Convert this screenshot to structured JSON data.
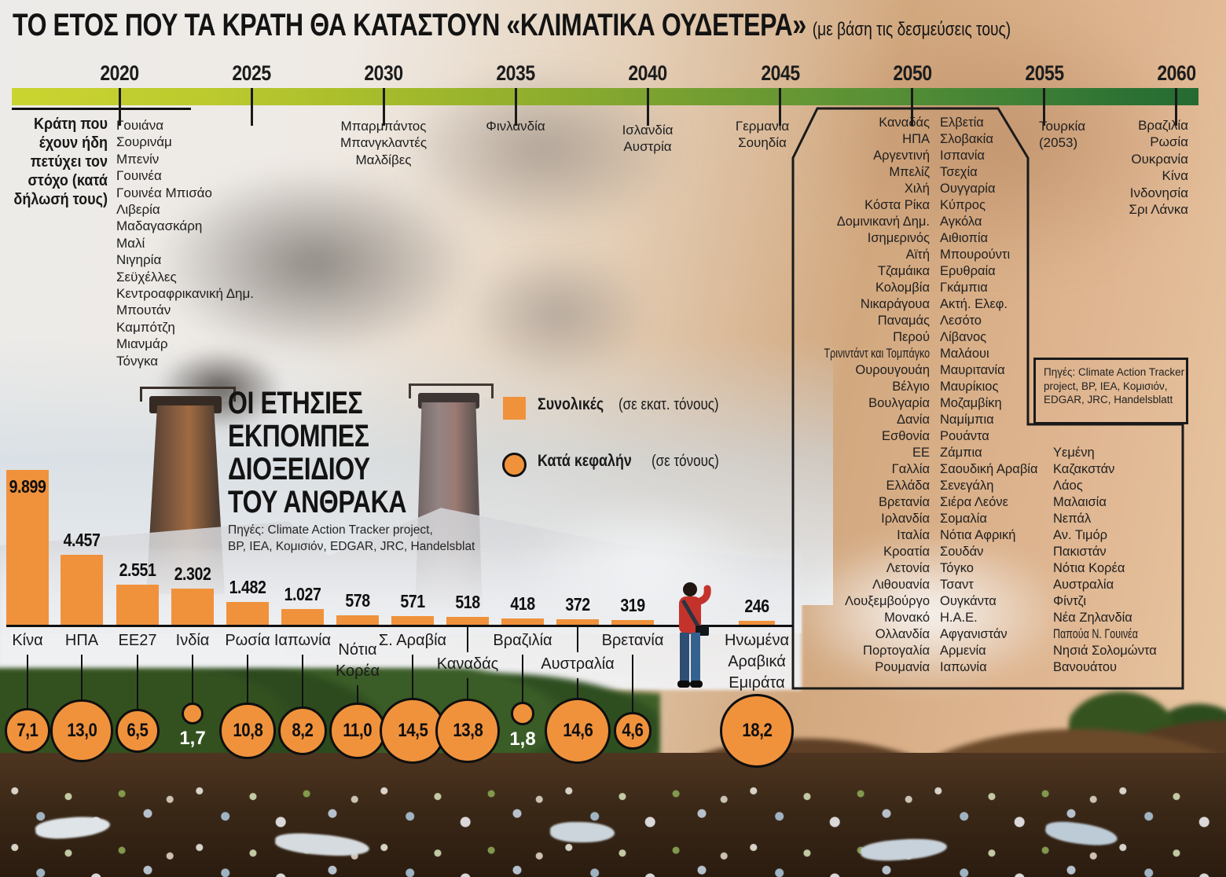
{
  "title": {
    "main": "ΤΟ ΕΤΟΣ ΠΟΥ ΤΑ ΚΡΑΤΗ ΘΑ ΚΑΤΑΣΤΟΥΝ «ΚΛΙΜΑΤΙΚΑ ΟΥΔΕΤΕΡΑ»",
    "note": "(με βάση τις δεσμεύσεις τους)"
  },
  "achieved_note_lines": [
    "Κράτη που",
    "έχουν ήδη",
    "πετύχει τον",
    "στόχο (κατά",
    "δήλωσή τους)"
  ],
  "sources_box_lines": [
    "Πηγές: Climate Action Tracker",
    "project, BP, IEA, Κομισιόν,",
    "EDGAR, JRC, Handelsblatt"
  ],
  "emissions": {
    "headline_lines": [
      "ΟΙ ΕΤΗΣΙΕΣ",
      "ΕΚΠΟΜΠΕΣ",
      "ΔΙΟΞΕΙΔΙΟΥ",
      "ΤΟΥ ΑΝΘΡΑΚΑ"
    ],
    "sources_lines": [
      "Πηγές: Climate Action Tracker project,",
      "BP, IEA, Κομισιόν, EDGAR, JRC, Handelsblat"
    ],
    "legend": {
      "total_label": "Συνολικές",
      "total_unit": "(σε εκατ. τόνους)",
      "percap_label": "Κατά κεφαλήν",
      "percap_unit": "(σε τόνους)"
    }
  },
  "colors": {
    "accent_orange": "#F0923C",
    "timeline_start": "#CBD531",
    "timeline_end": "#256A31",
    "ink": "#1A1A1A"
  },
  "chart_data": [
    {
      "type": "bar",
      "title": "ΟΙ ΕΤΗΣΙΕΣ ΕΚΠΟΜΠΕΣ ΔΙΟΞΕΙΔΙΟΥ ΤΟΥ ΑΝΘΡΑΚΑ",
      "categories": [
        "Κίνα",
        "ΗΠΑ",
        "ΕΕ27",
        "Ινδία",
        "Ρωσία",
        "Ιαπωνία",
        "Νότια Κορέα",
        "Σ. Αραβία",
        "Καναδάς",
        "Βραζιλία",
        "Αυστραλία",
        "Βρετανία",
        "Ηνωμένα Αραβικά Εμιράτα"
      ],
      "category_label_lines": [
        [
          "Κίνα"
        ],
        [
          "ΗΠΑ"
        ],
        [
          "ΕΕ27"
        ],
        [
          "Ινδία"
        ],
        [
          "Ρωσία"
        ],
        [
          "Ιαπωνία"
        ],
        [
          "Νότια",
          "Κορέα"
        ],
        [
          "Σ. Αραβία"
        ],
        [
          "Καναδάς"
        ],
        [
          "Βραζιλία"
        ],
        [
          "Αυστραλία"
        ],
        [
          "Βρετανία"
        ],
        [
          "Ηνωμένα",
          "Αραβικά",
          "Εμιράτα"
        ]
      ],
      "series": [
        {
          "name": "Συνολικές (σε εκατ. τόνους)",
          "values": [
            9899,
            4457,
            2551,
            2302,
            1482,
            1027,
            578,
            571,
            518,
            418,
            372,
            319,
            246
          ],
          "value_labels": [
            "9.899",
            "4.457",
            "2.551",
            "2.302",
            "1.482",
            "1.027",
            "578",
            "571",
            "518",
            "418",
            "372",
            "319",
            "246"
          ]
        },
        {
          "name": "Κατά κεφαλήν (σε τόνους)",
          "values": [
            7.1,
            13.0,
            6.5,
            1.7,
            10.8,
            8.2,
            11.0,
            14.5,
            13.8,
            1.8,
            14.6,
            4.6,
            18.2
          ],
          "value_labels": [
            "7,1",
            "13,0",
            "6,5",
            "1,7",
            "10,8",
            "8,2",
            "11,0",
            "14,5",
            "13,8",
            "1,8",
            "14,6",
            "4,6",
            "18,2"
          ]
        }
      ]
    },
    {
      "type": "timeline",
      "title": "ΤΟ ΕΤΟΣ ΠΟΥ ΤΑ ΚΡΑΤΗ ΘΑ ΚΑΤΑΣΤΟΥΝ «ΚΛΙΜΑΤΙΚΑ ΟΥΔΕΤΕΡΑ»",
      "x": [
        "2020",
        "2025",
        "2030",
        "2035",
        "2040",
        "2045",
        "2050",
        "2055",
        "2060"
      ],
      "groups": {
        "2020": [
          "Γουιάνα",
          "Σουρινάμ",
          "Μπενίν",
          "Γουινέα",
          "Γουινέα Μπισάο",
          "Λιβερία",
          "Μαδαγασκάρη",
          "Μαλί",
          "Νιγηρία",
          "Σεϋχέλλες",
          "Κεντροαφρικανική Δημ.",
          "Μπουτάν",
          "Καμπότζη",
          "Μιανμάρ",
          "Τόνγκα"
        ],
        "2030": [
          "Μπαρμπάντος",
          "Μπανγκλαντές",
          "Μαλδίβες"
        ],
        "2035": [
          "Φινλανδία"
        ],
        "2040": [
          "Ισλανδία",
          "Αυστρία"
        ],
        "2045": [
          "Γερμανία",
          "Σουηδία"
        ],
        "2050": {
          "col1": [
            "Καναδάς",
            "ΗΠΑ",
            "Αργεντινή",
            "Μπελίζ",
            "Χιλή",
            "Κόστα Ρίκα",
            "Δομινικανή Δημ.",
            "Ισημερινός",
            "Αϊτή",
            "Τζαμάικα",
            "Κολομβία",
            "Νικαράγουα",
            "Παναμάς",
            "Περού",
            "Τρινιντάντ και Τομπάγκο",
            "Ουρουγουάη",
            "Βέλγιο",
            "Βουλγαρία",
            "Δανία",
            "Εσθονία",
            "ΕΕ",
            "Γαλλία",
            "Ελλάδα",
            "Βρετανία",
            "Ιρλανδία",
            "Ιταλία",
            "Κροατία",
            "Λετονία",
            "Λιθουανία",
            "Λουξεμβούργο",
            "Μονακό",
            "Ολλανδία",
            "Πορτογαλία",
            "Ρουμανία"
          ],
          "col2": [
            "Ελβετία",
            "Σλοβακία",
            "Ισπανία",
            "Τσεχία",
            "Ουγγαρία",
            "Κύπρος",
            "Αγκόλα",
            "Αιθιοπία",
            "Μπουρούντι",
            "Ερυθραία",
            "Γκάμπια",
            "Ακτή. Ελεφ.",
            "Λεσότο",
            "Λίβανος",
            "Μαλάουι",
            "Μαυριτανία",
            "Μαυρίκιος",
            "Μοζαμβίκη",
            "Ναμίμπια",
            "Ρουάντα",
            "Ζάμπια",
            "Σαουδική Αραβία",
            "Σενεγάλη",
            "Σιέρα Λεόνε",
            "Σομαλία",
            "Νότια Αφρική",
            "Σουδάν",
            "Τόγκο",
            "Τσαντ",
            "Ουγκάντα",
            "Η.Α.Ε.",
            "Αφγανιστάν",
            "Αρμενία",
            "Ιαπωνία"
          ],
          "col3": [
            "Υεμένη",
            "Καζακστάν",
            "Λάος",
            "Μαλαισία",
            "Νεπάλ",
            "Αν. Τιμόρ",
            "Πακιστάν",
            "Νότια Κορέα",
            "Αυστραλία",
            "Φίντζι",
            "Νέα Ζηλανδία",
            "Παπούα Ν. Γουινέα",
            "Νησιά Σολομώντα",
            "Βανουάτου"
          ]
        },
        "2055": [
          "Τουρκία",
          "(2053)"
        ],
        "2060": [
          "Βραζιλία",
          "Ρωσία",
          "Ουκρανία",
          "Κίνα",
          "Ινδονησία",
          "Σρι Λάνκα"
        ]
      }
    }
  ]
}
